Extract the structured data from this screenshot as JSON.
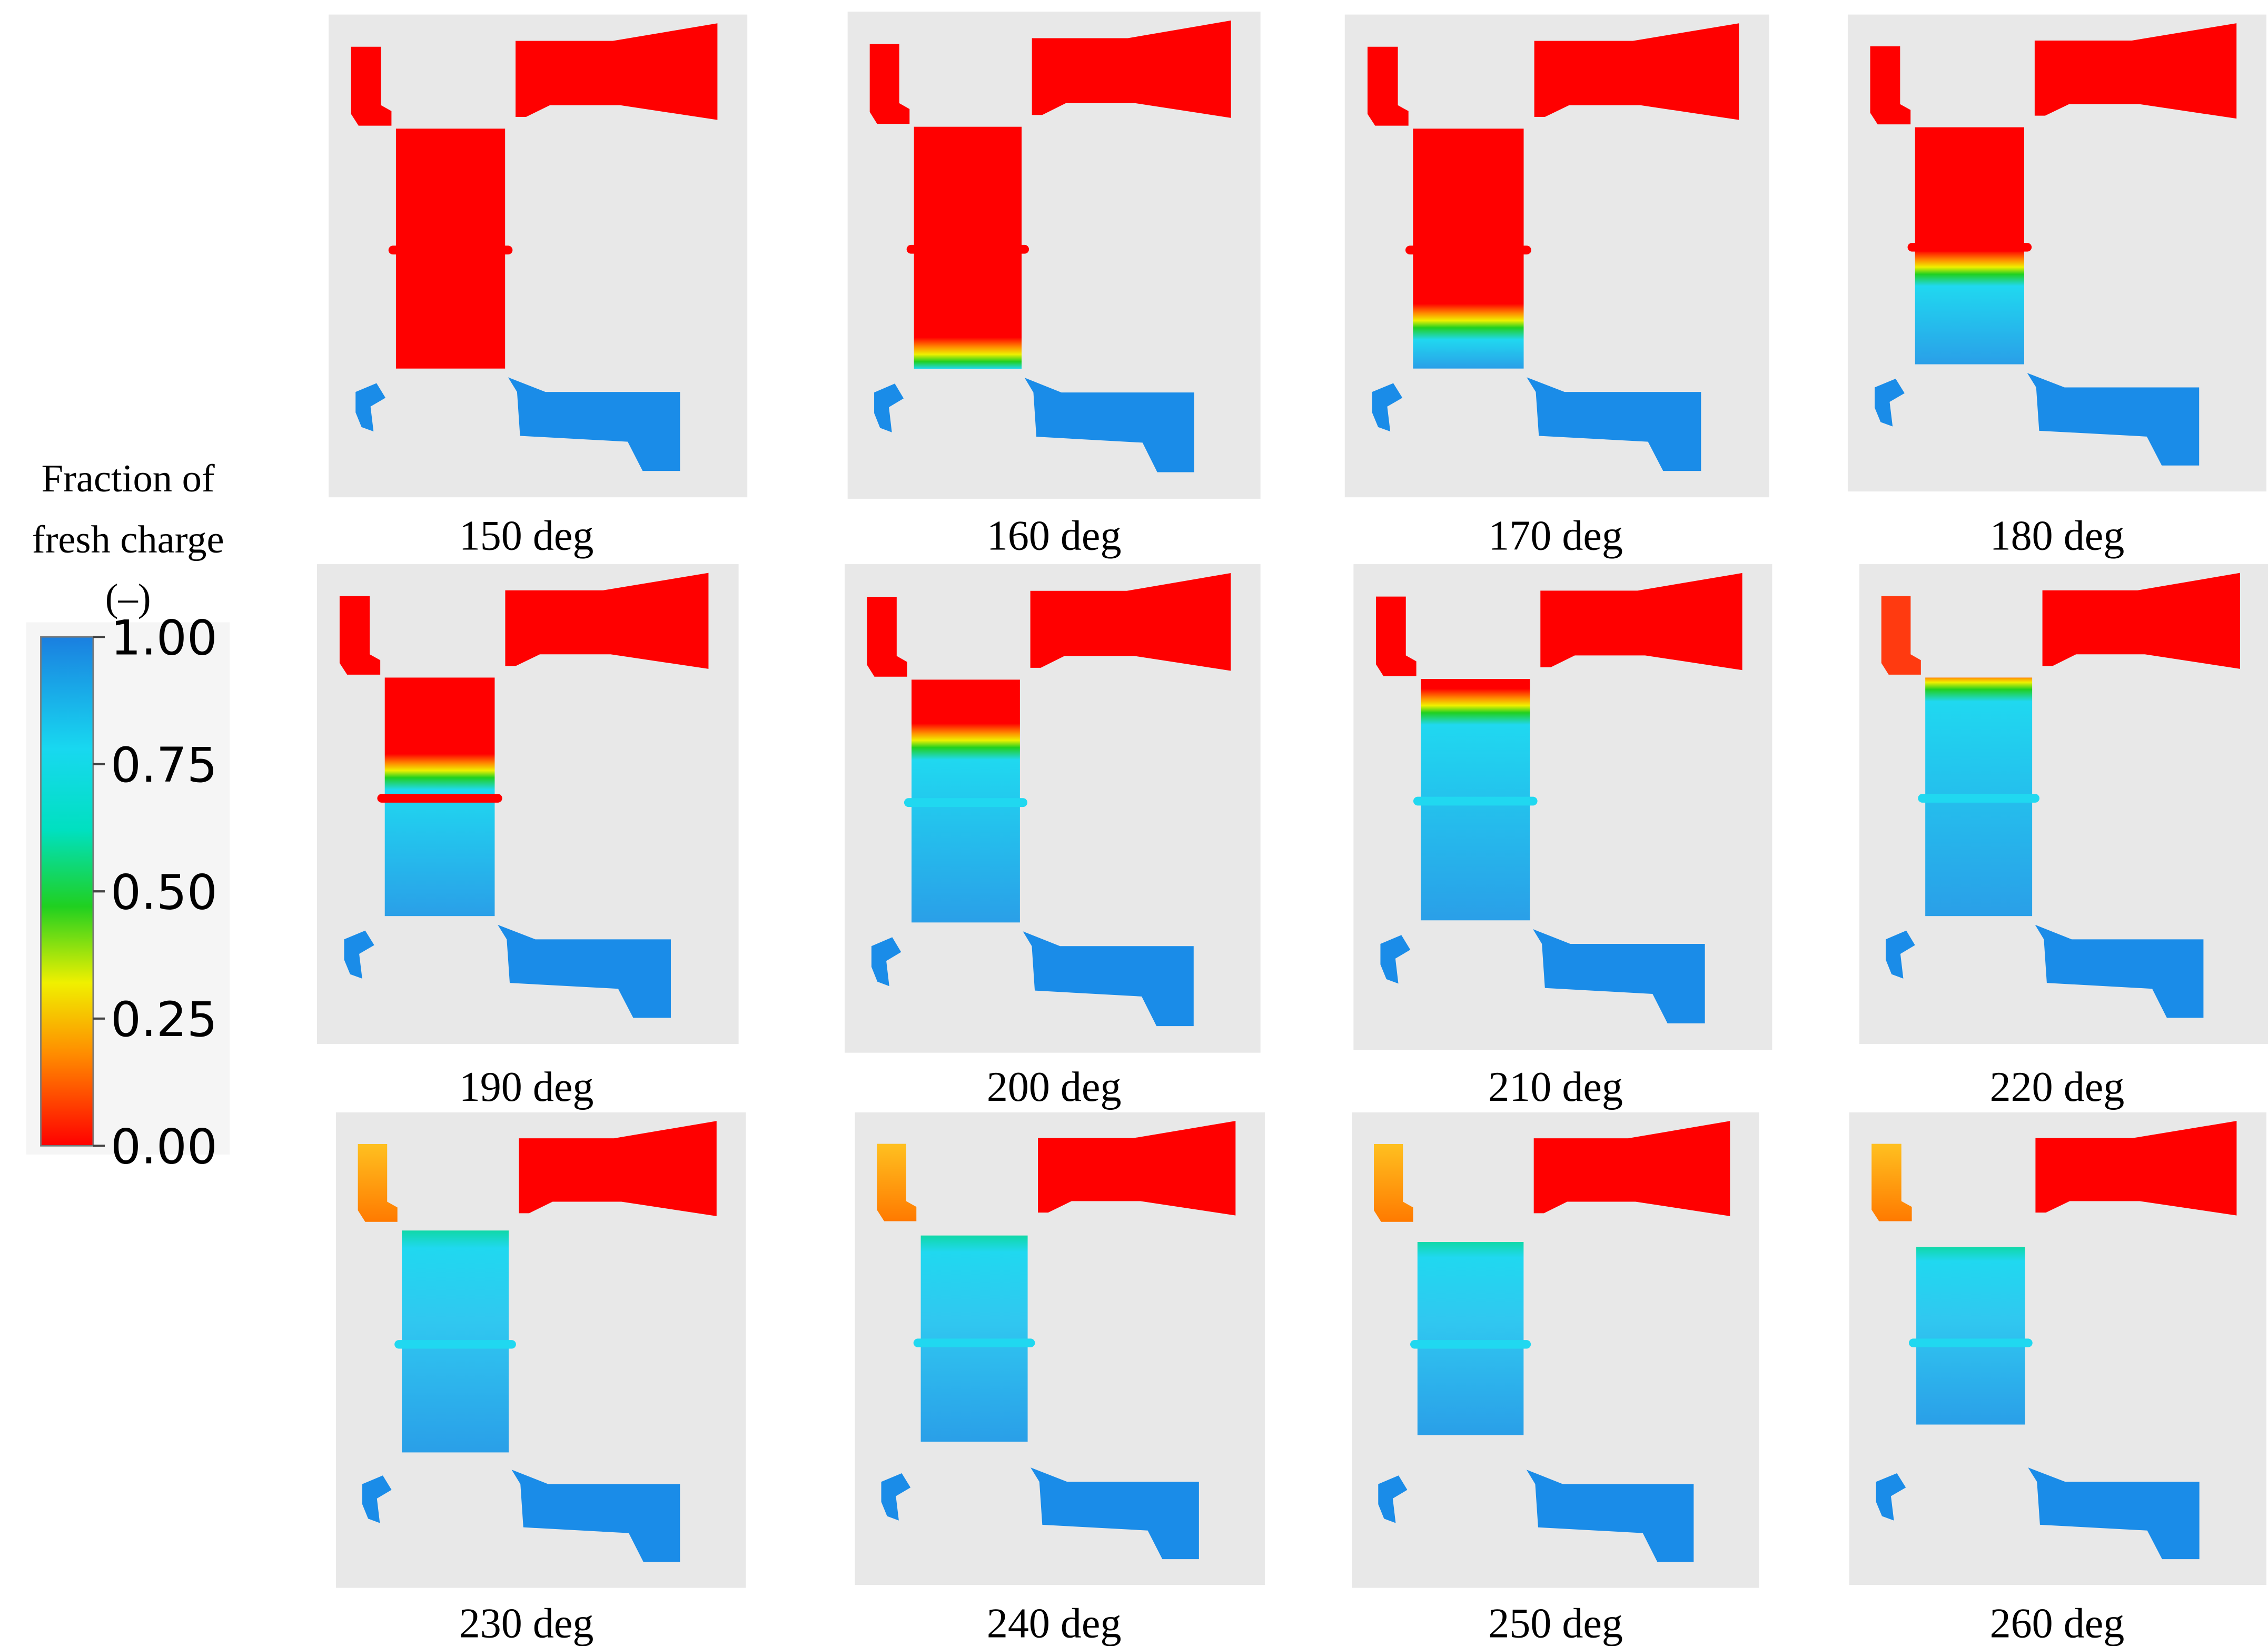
{
  "legend": {
    "title": [
      "Fraction of",
      "fresh charge",
      "(–)"
    ],
    "ticks": [
      {
        "value": 1,
        "label": "1.00"
      },
      {
        "value": 0.75,
        "label": "0.75"
      },
      {
        "value": 0.5,
        "label": "0.50"
      },
      {
        "value": 0.25,
        "label": "0.25"
      },
      {
        "value": 0,
        "label": "0.00"
      }
    ],
    "range": [
      0,
      1
    ]
  },
  "panels": [
    {
      "label": "150 deg"
    },
    {
      "label": "160 deg"
    },
    {
      "label": "170 deg"
    },
    {
      "label": "180 deg"
    },
    {
      "label": "190 deg"
    },
    {
      "label": "200 deg"
    },
    {
      "label": "210 deg"
    },
    {
      "label": "220 deg"
    },
    {
      "label": "230 deg"
    },
    {
      "label": "240 deg"
    },
    {
      "label": "250 deg"
    },
    {
      "label": "260 deg"
    }
  ]
}
